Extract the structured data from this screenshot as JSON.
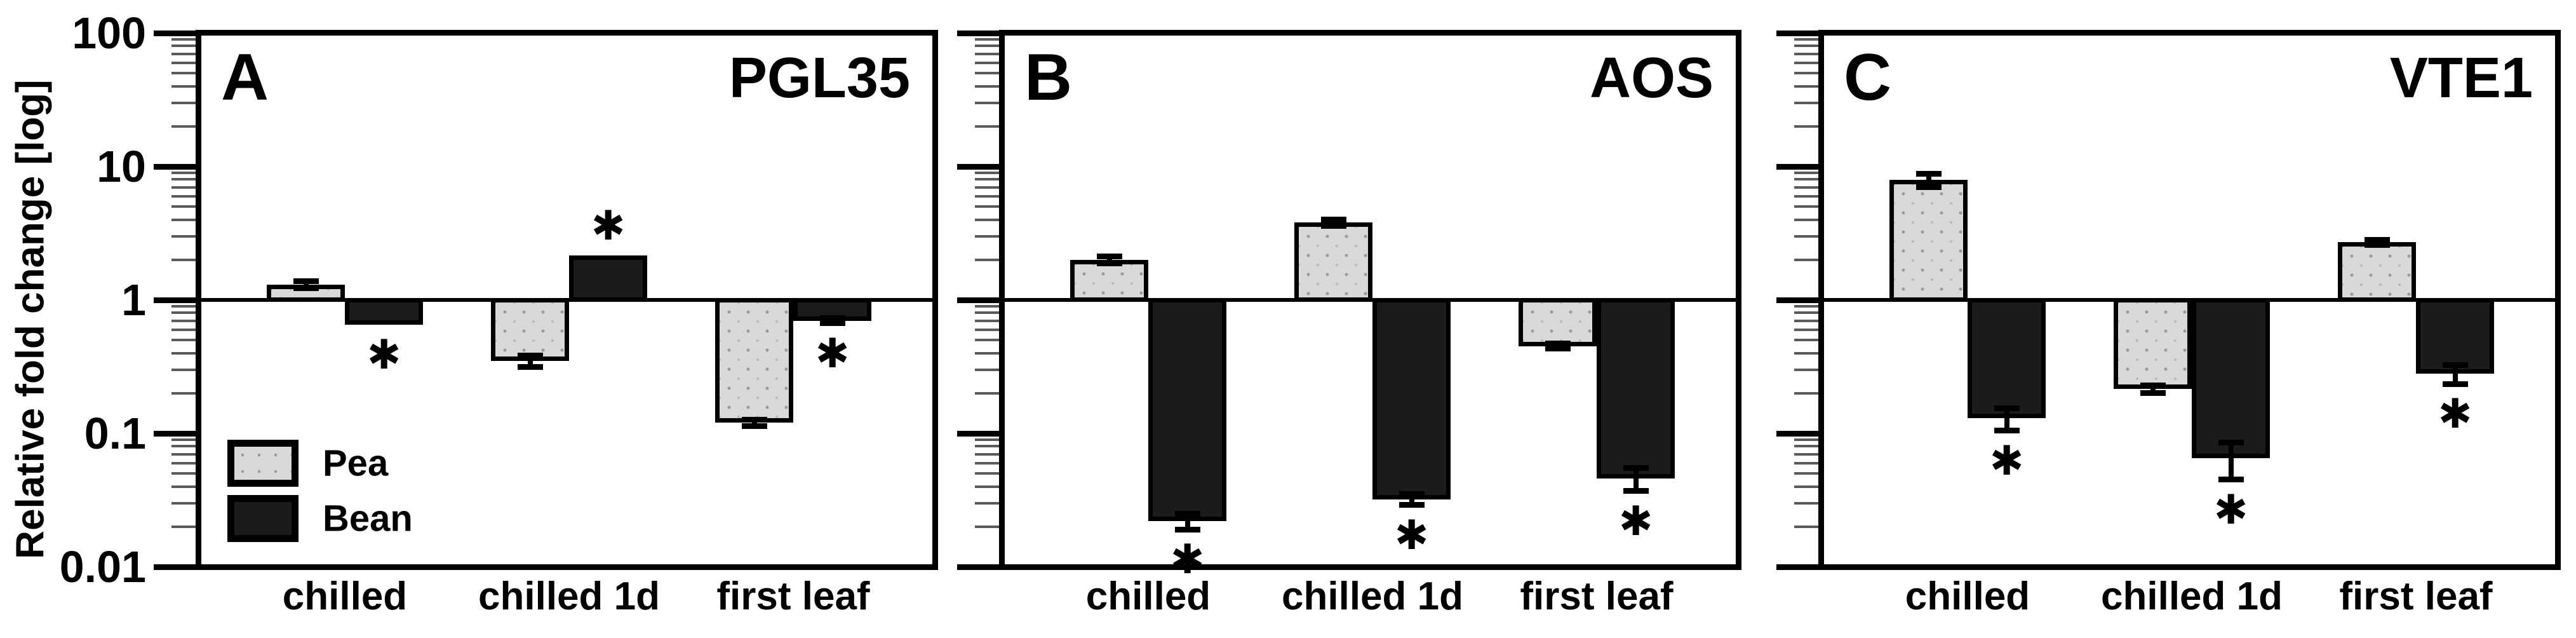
{
  "ylabel": "Relative fold change [log]",
  "yaxis": {
    "scale": "log",
    "min": 0.01,
    "max": 100,
    "tick_labels": [
      "100",
      "10",
      "1",
      "0.1",
      "0.01"
    ],
    "tick_values": [
      100,
      10,
      1,
      0.1,
      0.01
    ]
  },
  "categories": [
    "chilled",
    "chilled 1d",
    "first leaf"
  ],
  "legend": {
    "items": [
      {
        "label": "Pea",
        "swatch": "pea"
      },
      {
        "label": "Bean",
        "swatch": "bean"
      }
    ]
  },
  "colors": {
    "pea_fill": "#d9d9d9",
    "bean_fill": "#1b1b1b",
    "outline": "#000000",
    "background": "#ffffff"
  },
  "significance_marker": "✱",
  "chart_data": [
    {
      "type": "bar",
      "panel_letter": "A",
      "title": "PGL35",
      "yscale": "log",
      "ylim": [
        0.01,
        100
      ],
      "baseline": 1,
      "categories": [
        "chilled",
        "chilled 1d",
        "first leaf"
      ],
      "series": [
        {
          "name": "Pea",
          "values": [
            1.3,
            0.35,
            0.12
          ],
          "errors": [
            0.08,
            0.035,
            0.006
          ],
          "significant": [
            false,
            false,
            false
          ],
          "sig_position": [
            "below",
            "below",
            "below"
          ]
        },
        {
          "name": "Bean",
          "values": [
            0.65,
            2.15,
            0.7
          ],
          "errors": [
            0,
            0,
            0.03
          ],
          "significant": [
            true,
            true,
            true
          ],
          "sig_position": [
            "below",
            "above",
            "below"
          ]
        }
      ]
    },
    {
      "type": "bar",
      "panel_letter": "B",
      "title": "AOS",
      "yscale": "log",
      "ylim": [
        0.01,
        100
      ],
      "baseline": 1,
      "categories": [
        "chilled",
        "chilled 1d",
        "first leaf"
      ],
      "series": [
        {
          "name": "Pea",
          "values": [
            2.0,
            3.8,
            0.45
          ],
          "errors": [
            0.12,
            0.2,
            0.02
          ],
          "significant": [
            false,
            false,
            false
          ],
          "sig_position": [
            "below",
            "below",
            "below"
          ]
        },
        {
          "name": "Bean",
          "values": [
            0.022,
            0.032,
            0.046
          ],
          "errors": [
            0.003,
            0.003,
            0.009
          ],
          "significant": [
            true,
            true,
            true
          ],
          "sig_position": [
            "below",
            "below",
            "below"
          ]
        }
      ]
    },
    {
      "type": "bar",
      "panel_letter": "C",
      "title": "VTE1",
      "yscale": "log",
      "ylim": [
        0.01,
        100
      ],
      "baseline": 1,
      "categories": [
        "chilled",
        "chilled 1d",
        "first leaf"
      ],
      "series": [
        {
          "name": "Pea",
          "values": [
            7.9,
            0.215,
            2.7
          ],
          "errors": [
            0.9,
            0.015,
            0.12
          ],
          "significant": [
            false,
            false,
            false
          ],
          "sig_position": [
            "below",
            "below",
            "below"
          ]
        },
        {
          "name": "Bean",
          "values": [
            0.13,
            0.065,
            0.28
          ],
          "errors": [
            0.025,
            0.02,
            0.045
          ],
          "significant": [
            true,
            true,
            true
          ],
          "sig_position": [
            "below",
            "below",
            "below"
          ]
        }
      ]
    }
  ]
}
